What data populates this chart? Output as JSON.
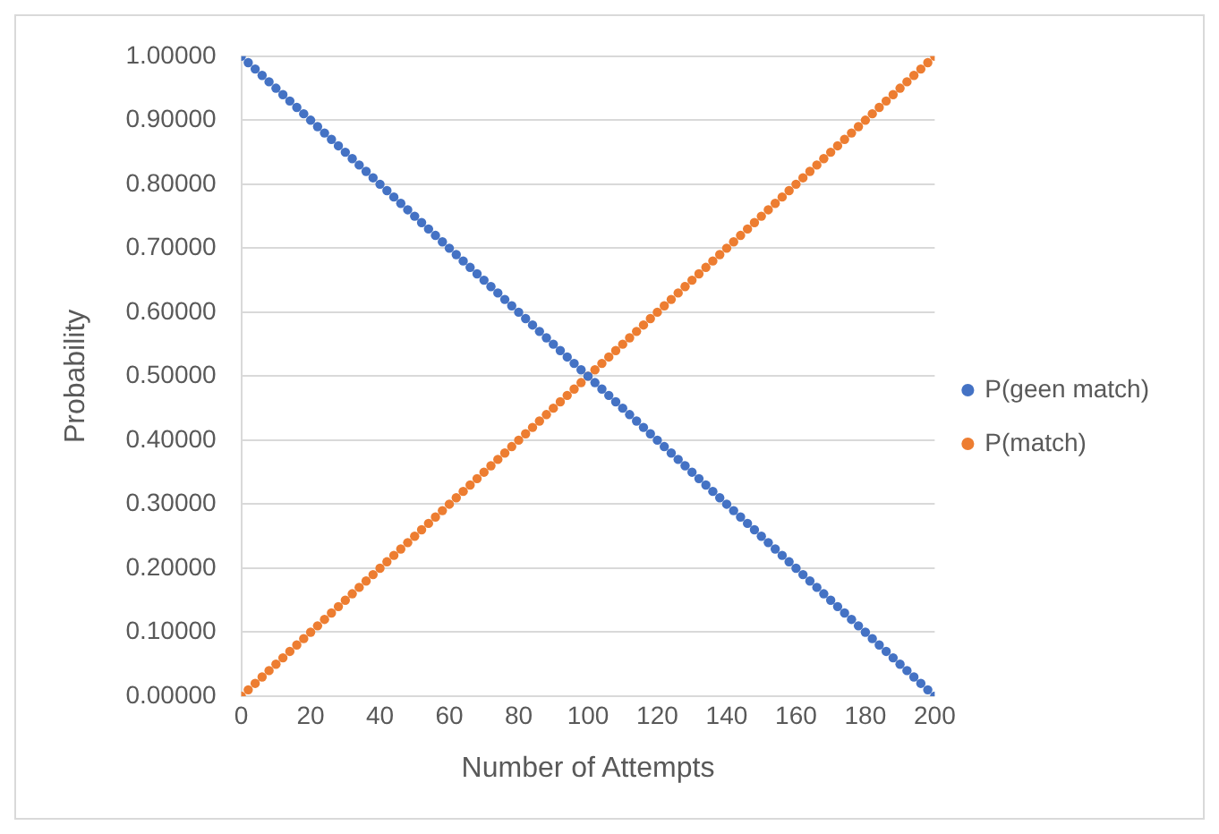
{
  "chart_data": {
    "type": "scatter",
    "xlabel": "Number of Attempts",
    "ylabel": "Probability",
    "x": [
      0,
      2,
      4,
      6,
      8,
      10,
      12,
      14,
      16,
      18,
      20,
      22,
      24,
      26,
      28,
      30,
      32,
      34,
      36,
      38,
      40,
      42,
      44,
      46,
      48,
      50,
      52,
      54,
      56,
      58,
      60,
      62,
      64,
      66,
      68,
      70,
      72,
      74,
      76,
      78,
      80,
      82,
      84,
      86,
      88,
      90,
      92,
      94,
      96,
      98,
      100,
      102,
      104,
      106,
      108,
      110,
      112,
      114,
      116,
      118,
      120,
      122,
      124,
      126,
      128,
      130,
      132,
      134,
      136,
      138,
      140,
      142,
      144,
      146,
      148,
      150,
      152,
      154,
      156,
      158,
      160,
      162,
      164,
      166,
      168,
      170,
      172,
      174,
      176,
      178,
      180,
      182,
      184,
      186,
      188,
      190,
      192,
      194,
      196,
      198,
      200
    ],
    "series": [
      {
        "name": "P(geen match)",
        "color": "#4472c4",
        "values": [
          1,
          0.99,
          0.98,
          0.97,
          0.96,
          0.95,
          0.94,
          0.93,
          0.92,
          0.91,
          0.9,
          0.89,
          0.88,
          0.87,
          0.86,
          0.85,
          0.84,
          0.83,
          0.82,
          0.81,
          0.8,
          0.79,
          0.78,
          0.77,
          0.76,
          0.75,
          0.74,
          0.73,
          0.72,
          0.71,
          0.7,
          0.69,
          0.68,
          0.67,
          0.66,
          0.65,
          0.64,
          0.63,
          0.62,
          0.61,
          0.6,
          0.59,
          0.58,
          0.57,
          0.56,
          0.55,
          0.54,
          0.53,
          0.52,
          0.51,
          0.5,
          0.49,
          0.48,
          0.47,
          0.46,
          0.45,
          0.44,
          0.43,
          0.42,
          0.41,
          0.4,
          0.39,
          0.38,
          0.37,
          0.36,
          0.35,
          0.34,
          0.33,
          0.32,
          0.31,
          0.3,
          0.29,
          0.28,
          0.27,
          0.26,
          0.25,
          0.24,
          0.23,
          0.22,
          0.21,
          0.2,
          0.19,
          0.18,
          0.17,
          0.16,
          0.15,
          0.14,
          0.13,
          0.12,
          0.11,
          0.1,
          0.09,
          0.08,
          0.07,
          0.06,
          0.05,
          0.04,
          0.03,
          0.02,
          0.01,
          0
        ]
      },
      {
        "name": "P(match)",
        "color": "#ed7d31",
        "values": [
          0,
          0.01,
          0.02,
          0.03,
          0.04,
          0.05,
          0.06,
          0.07,
          0.08,
          0.09,
          0.1,
          0.11,
          0.12,
          0.13,
          0.14,
          0.15,
          0.16,
          0.17,
          0.18,
          0.19,
          0.2,
          0.21,
          0.22,
          0.23,
          0.24,
          0.25,
          0.26,
          0.27,
          0.28,
          0.29,
          0.3,
          0.31,
          0.32,
          0.33,
          0.34,
          0.35,
          0.36,
          0.37,
          0.38,
          0.39,
          0.4,
          0.41,
          0.42,
          0.43,
          0.44,
          0.45,
          0.46,
          0.47,
          0.48,
          0.49,
          0.5,
          0.51,
          0.52,
          0.53,
          0.54,
          0.55,
          0.56,
          0.57,
          0.58,
          0.59,
          0.6,
          0.61,
          0.62,
          0.63,
          0.64,
          0.65,
          0.66,
          0.67,
          0.68,
          0.69,
          0.7,
          0.71,
          0.72,
          0.73,
          0.74,
          0.75,
          0.76,
          0.77,
          0.78,
          0.79,
          0.8,
          0.81,
          0.82,
          0.83,
          0.84,
          0.85,
          0.86,
          0.87,
          0.88,
          0.89,
          0.9,
          0.91,
          0.92,
          0.93,
          0.94,
          0.95,
          0.96,
          0.97,
          0.98,
          0.99,
          1
        ]
      }
    ],
    "xlim": [
      0,
      200
    ],
    "xticks": [
      0,
      20,
      40,
      60,
      80,
      100,
      120,
      140,
      160,
      180,
      200
    ],
    "ylim": [
      0,
      1
    ],
    "yticks": [
      {
        "value": 0,
        "label": "0.00000"
      },
      {
        "value": 0.1,
        "label": "0.10000"
      },
      {
        "value": 0.2,
        "label": "0.20000"
      },
      {
        "value": 0.3,
        "label": "0.30000"
      },
      {
        "value": 0.4,
        "label": "0.40000"
      },
      {
        "value": 0.5,
        "label": "0.50000"
      },
      {
        "value": 0.6,
        "label": "0.60000"
      },
      {
        "value": 0.7,
        "label": "0.70000"
      },
      {
        "value": 0.8,
        "label": "0.80000"
      },
      {
        "value": 0.9,
        "label": "0.90000"
      },
      {
        "value": 1,
        "label": "1.00000"
      }
    ],
    "grid": "y",
    "legend": "right",
    "marker": "circle"
  }
}
